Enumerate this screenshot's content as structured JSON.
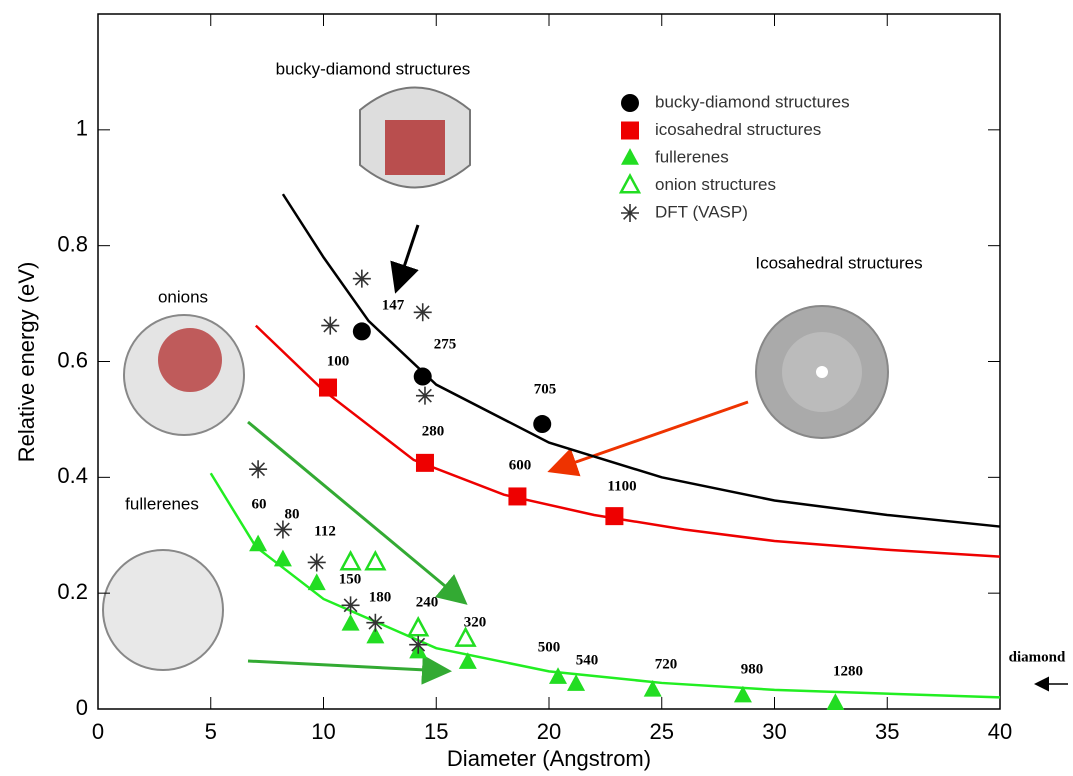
{
  "chart_data": {
    "type": "scatter",
    "xlabel": "Diameter (Angstrom)",
    "ylabel": "Relative energy (eV)",
    "xlim": [
      0,
      40
    ],
    "xticks": [
      0,
      5,
      10,
      15,
      20,
      25,
      30,
      35,
      40
    ],
    "ylim": [
      0,
      1.2
    ],
    "yticks": [
      0,
      0.2,
      0.4,
      0.6,
      0.8,
      1
    ],
    "legend": "top-right",
    "series": [
      {
        "name": "bucky-diamond structures",
        "color": "#000000",
        "marker": "circle",
        "x": [
          11.7,
          14.4,
          19.7
        ],
        "values": [
          0.652,
          0.574,
          0.492
        ]
      },
      {
        "name": "icosahedral structures",
        "color": "#ee0000",
        "marker": "square",
        "x": [
          10.2,
          14.5,
          18.6,
          22.9
        ],
        "values": [
          0.555,
          0.425,
          0.367,
          0.333
        ]
      },
      {
        "name": "fullerenes",
        "color": "#22dd22",
        "marker": "triangle",
        "x": [
          7.1,
          8.2,
          9.7,
          11.2,
          12.3,
          14.2,
          16.4,
          20.4,
          21.2,
          24.6,
          28.6,
          32.7
        ],
        "values": [
          0.284,
          0.258,
          0.217,
          0.147,
          0.125,
          0.099,
          0.081,
          0.055,
          0.043,
          0.033,
          0.023,
          0.01
        ]
      },
      {
        "name": "onion structures",
        "color": "#22dd22",
        "marker": "open-triangle",
        "x": [
          11.2,
          12.3,
          14.2,
          16.3
        ],
        "values": [
          0.253,
          0.253,
          0.139,
          0.121
        ]
      },
      {
        "name": "DFT (VASP)",
        "color": "#333333",
        "marker": "asterisk",
        "x": [
          7.1,
          8.2,
          9.7,
          11.2,
          12.3,
          14.2,
          10.3,
          11.7,
          14.4,
          14.5
        ],
        "values": [
          0.414,
          0.31,
          0.253,
          0.179,
          0.149,
          0.111,
          0.662,
          0.743,
          0.685,
          0.541
        ]
      }
    ],
    "fit_curves": [
      {
        "color": "#000000",
        "x": [
          8.2,
          10,
          12,
          15,
          20,
          25,
          30,
          35,
          40
        ],
        "values": [
          0.889,
          0.78,
          0.67,
          0.56,
          0.46,
          0.4,
          0.36,
          0.335,
          0.315
        ]
      },
      {
        "color": "#ee0000",
        "x": [
          7,
          10,
          14,
          18,
          22,
          26,
          30,
          35,
          40
        ],
        "values": [
          0.662,
          0.55,
          0.43,
          0.37,
          0.335,
          0.31,
          0.29,
          0.275,
          0.263
        ]
      },
      {
        "color": "#22ee22",
        "x": [
          5,
          7,
          10,
          15,
          20,
          25,
          30,
          40
        ],
        "values": [
          0.407,
          0.28,
          0.19,
          0.105,
          0.065,
          0.045,
          0.033,
          0.02
        ]
      }
    ],
    "point_labels": [
      "147",
      "275",
      "100",
      "705",
      "280",
      "600",
      "1100",
      "60",
      "80",
      "112",
      "150",
      "180",
      "240",
      "320",
      "500",
      "540",
      "720",
      "980",
      "1280",
      "diamond"
    ],
    "inset_labels": [
      "bucky-diamond structures",
      "onions",
      "Icosahedral structures",
      "fullerenes"
    ]
  }
}
